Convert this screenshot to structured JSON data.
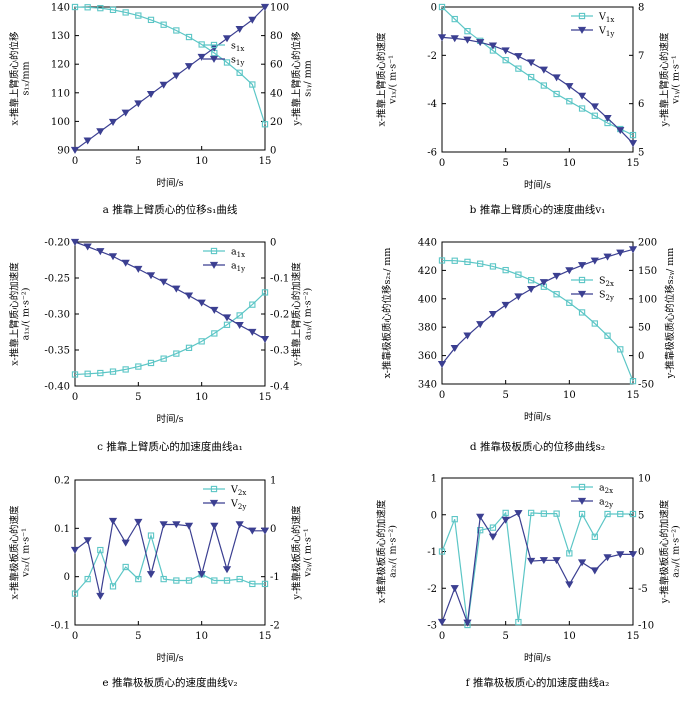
{
  "chart_data": [
    {
      "id": "a",
      "type": "line",
      "caption": "a  推靠上臂质心的位移s₁曲线",
      "xlabel": "时间/s",
      "ylabel_left": "x-推靠上臂质心的位移\ns₁ₓ/mm",
      "ylabel_right": "y-推靠上臂质心的位移\ns₁ᵧ/ mm",
      "xlim": [
        0,
        15
      ],
      "xticks": [
        0,
        5,
        10,
        15
      ],
      "ylim_left": [
        90,
        140
      ],
      "yticks_left": [
        "90",
        "100",
        "110",
        "120",
        "130",
        "140"
      ],
      "ylim_right": [
        0,
        100
      ],
      "yticks_right": [
        "0",
        "20",
        "40",
        "60",
        "80",
        "100"
      ],
      "legend": {
        "position": "right",
        "entries": [
          {
            "base": "s",
            "sub": "1x"
          },
          {
            "base": "s",
            "sub": "1y"
          }
        ]
      },
      "x": [
        0,
        1,
        2,
        3,
        4,
        5,
        6,
        7,
        8,
        9,
        10,
        11,
        12,
        13,
        14,
        15
      ],
      "series": [
        {
          "name": "s1x",
          "axis": "left",
          "color": "#5cc6c6",
          "marker": "square",
          "values": [
            140,
            139.9,
            139.6,
            139,
            138.1,
            137,
            135.5,
            133.8,
            131.8,
            129.5,
            126.9,
            123.9,
            120.6,
            117,
            112.9,
            99
          ]
        },
        {
          "name": "s1y",
          "axis": "right",
          "color": "#3b3f91",
          "marker": "triangle-down",
          "values": [
            0,
            6.5,
            13,
            19.5,
            26,
            32.5,
            39,
            45.5,
            52,
            58.5,
            65,
            71.5,
            78,
            84.5,
            91,
            100
          ]
        }
      ]
    },
    {
      "id": "b",
      "type": "line",
      "caption": "b  推靠上臂质心的速度曲线v₁",
      "xlabel": "时间/s",
      "ylabel_left": "x-推靠上臂质心的速度\nv₁ₓ/( m·s⁻¹",
      "ylabel_right": "y-推靠上臂质心的速度\nv₁ᵧ/( m·s⁻¹",
      "xlim": [
        0,
        15
      ],
      "xticks": [
        0,
        5,
        10,
        15
      ],
      "ylim_left": [
        -6,
        0
      ],
      "yticks_left": [
        "-6",
        "-4",
        "-2",
        "0"
      ],
      "ylim_right": [
        5,
        8
      ],
      "yticks_right": [
        "5",
        "6",
        "7",
        "8"
      ],
      "legend": {
        "position": "top-right",
        "entries": [
          {
            "base": "V",
            "sub": "1x"
          },
          {
            "base": "V",
            "sub": "1y"
          }
        ]
      },
      "x": [
        0,
        1,
        2,
        3,
        4,
        5,
        6,
        7,
        8,
        9,
        10,
        11,
        12,
        13,
        14,
        15
      ],
      "series": [
        {
          "name": "V1x",
          "axis": "left",
          "color": "#5cc6c6",
          "marker": "square",
          "values": [
            0,
            -0.5,
            -1,
            -1.4,
            -1.8,
            -2.2,
            -2.55,
            -2.9,
            -3.25,
            -3.6,
            -3.9,
            -4.2,
            -4.5,
            -4.8,
            -5.05,
            -5.3
          ]
        },
        {
          "name": "V1y",
          "axis": "right",
          "color": "#3b3f91",
          "marker": "triangle-down",
          "values": [
            7.37,
            7.35,
            7.32,
            7.27,
            7.2,
            7.1,
            6.98,
            6.85,
            6.7,
            6.54,
            6.36,
            6.16,
            5.94,
            5.7,
            5.45,
            5.18
          ]
        }
      ]
    },
    {
      "id": "c",
      "type": "line",
      "caption": "c  推靠上臂质心的加速度曲线a₁",
      "xlabel": "时间/s",
      "ylabel_left": "x-推靠上臂质心的加速度\na₁ₓ/( m·s⁻²)",
      "ylabel_right": "y-推靠上臂质心的加速度\na₁ᵧ/( m·s⁻²)",
      "xlim": [
        0,
        15
      ],
      "xticks": [
        0,
        5,
        10,
        15
      ],
      "ylim_left": [
        -0.4,
        -0.2
      ],
      "yticks_left": [
        "-0.40",
        "-0.35",
        "-0.30",
        "-0.25",
        "-0.20"
      ],
      "ylim_right": [
        -0.4,
        0
      ],
      "yticks_right": [
        "-0.4",
        "-0.3",
        "-0.2",
        "-0.1",
        "0"
      ],
      "legend": {
        "position": "top-right",
        "entries": [
          {
            "base": "a",
            "sub": "1x"
          },
          {
            "base": "a",
            "sub": "1y"
          }
        ]
      },
      "x": [
        0,
        1,
        2,
        3,
        4,
        5,
        6,
        7,
        8,
        9,
        10,
        11,
        12,
        13,
        14,
        15
      ],
      "series": [
        {
          "name": "a1x",
          "axis": "left",
          "color": "#5cc6c6",
          "marker": "square",
          "values": [
            -0.384,
            -0.383,
            -0.382,
            -0.38,
            -0.377,
            -0.373,
            -0.368,
            -0.362,
            -0.355,
            -0.347,
            -0.338,
            -0.327,
            -0.315,
            -0.302,
            -0.287,
            -0.27
          ]
        },
        {
          "name": "a1y",
          "axis": "right",
          "color": "#3b3f91",
          "marker": "triangle-down",
          "values": [
            0,
            -0.013,
            -0.026,
            -0.04,
            -0.058,
            -0.075,
            -0.093,
            -0.111,
            -0.13,
            -0.149,
            -0.169,
            -0.189,
            -0.21,
            -0.231,
            -0.25,
            -0.27
          ]
        }
      ]
    },
    {
      "id": "d",
      "type": "line",
      "caption": "d  推靠极板质心的位移曲线s₂",
      "xlabel": "时间/s",
      "ylabel_left": "x-推靠极板质心的位移s₂ₓ/ mm",
      "ylabel_right": "y-推靠极板质心的位移s₂ᵧ/ mm",
      "xlim": [
        0,
        15
      ],
      "xticks": [
        0,
        5,
        10,
        15
      ],
      "ylim_left": [
        340,
        440
      ],
      "yticks_left": [
        "340",
        "360",
        "380",
        "400",
        "420",
        "440"
      ],
      "ylim_right": [
        -50,
        200
      ],
      "yticks_right": [
        "-50",
        "0",
        "50",
        "100",
        "150",
        "200"
      ],
      "legend": {
        "position": "right",
        "entries": [
          {
            "base": "S",
            "sub": "2x"
          },
          {
            "base": "S",
            "sub": "2y"
          }
        ]
      },
      "x": [
        0,
        1,
        2,
        3,
        4,
        5,
        6,
        7,
        8,
        9,
        10,
        11,
        12,
        13,
        14,
        15
      ],
      "series": [
        {
          "name": "S2x",
          "axis": "left",
          "color": "#5cc6c6",
          "marker": "square",
          "values": [
            427,
            426.8,
            426,
            424.7,
            422.8,
            420.2,
            417,
            413.1,
            408.5,
            403.2,
            397.2,
            390.4,
            382.6,
            374,
            364.4,
            342
          ]
        },
        {
          "name": "S2y",
          "axis": "right",
          "color": "#3b3f91",
          "marker": "triangle-down",
          "values": [
            -15,
            13,
            35,
            55,
            73,
            89,
            104,
            117,
            129,
            140,
            150,
            159,
            167,
            174,
            181,
            187
          ]
        }
      ]
    },
    {
      "id": "e",
      "type": "line",
      "caption": "e  推靠极板质心的速度曲线v₂",
      "xlabel": "时间/s",
      "ylabel_left": "x-推靠极板质心的速度\nv₂ₓ/( m·s⁻¹",
      "ylabel_right": "y-推靠极板质心的速度\nv₂ᵧ/( m·s⁻¹",
      "xlim": [
        0,
        15
      ],
      "xticks": [
        0,
        5,
        10,
        15
      ],
      "ylim_left": [
        -0.1,
        0.2
      ],
      "yticks_left": [
        "-0.1",
        "0",
        "0.1",
        "0.2"
      ],
      "ylim_right": [
        -2,
        1
      ],
      "yticks_right": [
        "-2",
        "-1",
        "0",
        "1"
      ],
      "legend": {
        "position": "top-right",
        "entries": [
          {
            "base": "V",
            "sub": "2x"
          },
          {
            "base": "V",
            "sub": "2y"
          }
        ]
      },
      "x": [
        0,
        1,
        2,
        3,
        4,
        5,
        6,
        7,
        8,
        9,
        10,
        11,
        12,
        13,
        14,
        15
      ],
      "series": [
        {
          "name": "V2x",
          "axis": "left",
          "color": "#5cc6c6",
          "marker": "square",
          "values": [
            -0.035,
            -0.005,
            0.055,
            -0.02,
            0.02,
            -0.005,
            0.085,
            -0.005,
            -0.008,
            -0.008,
            0.005,
            -0.008,
            -0.008,
            -0.005,
            -0.015,
            -0.015
          ]
        },
        {
          "name": "V2y",
          "axis": "right",
          "color": "#3b3f91",
          "marker": "triangle-down",
          "values": [
            -0.45,
            -0.25,
            -1.4,
            0.15,
            -0.3,
            0.13,
            -0.95,
            0.08,
            0.08,
            0.05,
            -0.95,
            0.05,
            -0.85,
            0.08,
            -0.05,
            -0.05
          ]
        }
      ]
    },
    {
      "id": "f",
      "type": "line",
      "caption": "f  推靠极板质心的加速度曲线a₂",
      "xlabel": "时间/s",
      "ylabel_left": "x-推靠极板质心的加速度\na₂ₓ/( m·s⁻²)",
      "ylabel_right": "y-推靠极板质心的加速度\na₂ᵧ/( m·s⁻²)",
      "xlim": [
        0,
        15
      ],
      "xticks": [
        0,
        5,
        10,
        15
      ],
      "ylim_left": [
        -3,
        1
      ],
      "yticks_left": [
        "-3",
        "-2",
        "-1",
        "0",
        "1"
      ],
      "ylim_right": [
        -10,
        10
      ],
      "yticks_right": [
        "-10",
        "-5",
        "0",
        "5",
        "10"
      ],
      "legend": {
        "position": "top-right",
        "entries": [
          {
            "base": "a",
            "sub": "2x"
          },
          {
            "base": "a",
            "sub": "2y"
          }
        ]
      },
      "x": [
        0,
        1,
        2,
        3,
        4,
        5,
        6,
        7,
        8,
        9,
        10,
        11,
        12,
        13,
        14,
        15
      ],
      "series": [
        {
          "name": "a2x",
          "axis": "left",
          "color": "#5cc6c6",
          "marker": "square",
          "values": [
            -1,
            -0.12,
            -3,
            -0.42,
            -0.35,
            0.05,
            -2.92,
            0.05,
            0.03,
            0.03,
            -1.05,
            0.02,
            -0.6,
            0.02,
            0.02,
            0.02
          ]
        },
        {
          "name": "a2y",
          "axis": "right",
          "color": "#3b3f91",
          "marker": "triangle-down",
          "values": [
            -9.6,
            -5,
            -9.7,
            4.7,
            2,
            4.3,
            5.2,
            -1.3,
            -1.2,
            -1.2,
            -4.5,
            -1.5,
            -2.6,
            -0.8,
            -0.4,
            -0.4
          ]
        }
      ]
    }
  ]
}
